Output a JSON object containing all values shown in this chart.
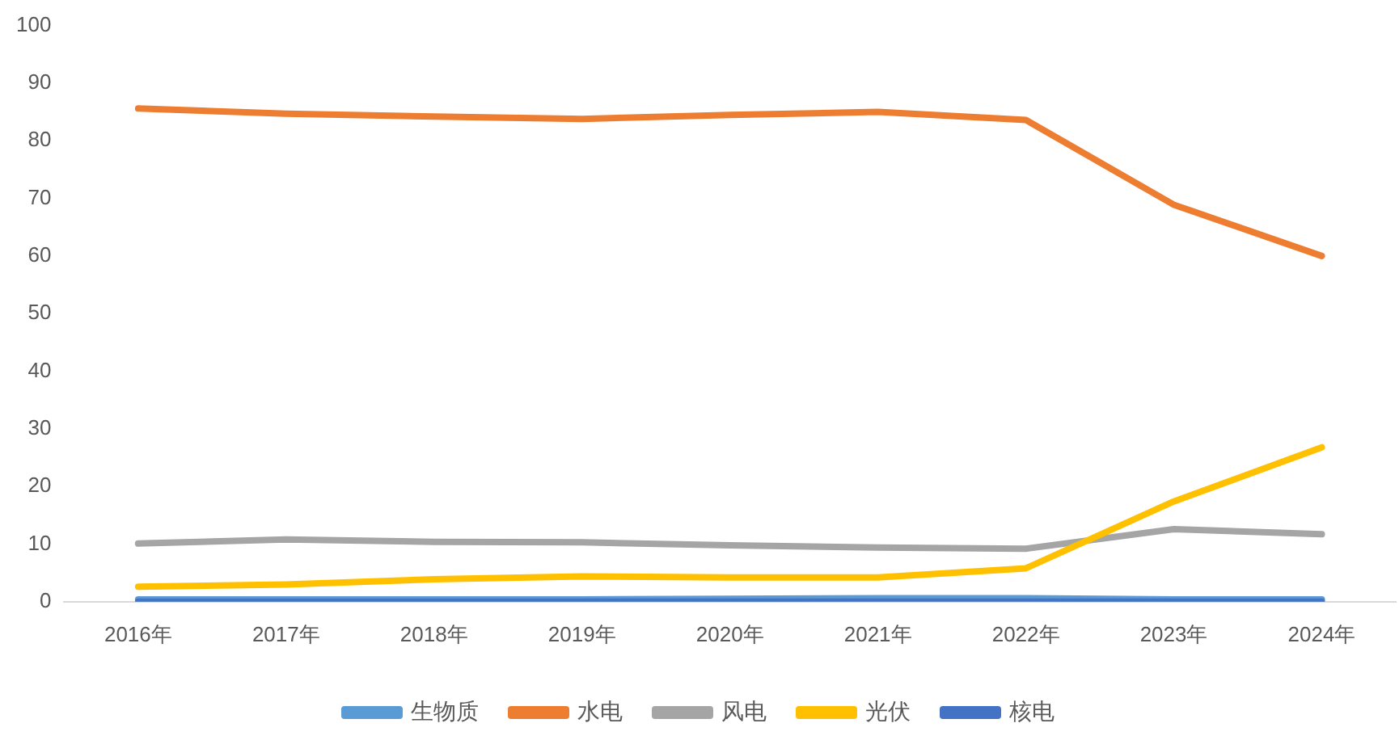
{
  "chart_data": {
    "type": "line",
    "categories": [
      "2016年",
      "2017年",
      "2018年",
      "2019年",
      "2020年",
      "2021年",
      "2022年",
      "2023年",
      "2024年"
    ],
    "series": [
      {
        "name": "生物质",
        "color": "#5b9bd5",
        "values": [
          0.4,
          0.4,
          0.4,
          0.4,
          0.5,
          0.6,
          0.6,
          0.4,
          0.4
        ]
      },
      {
        "name": "水电",
        "color": "#ed7d31",
        "values": [
          85.6,
          84.7,
          84.2,
          83.8,
          84.5,
          85,
          83.6,
          68.9,
          60
        ]
      },
      {
        "name": "风电",
        "color": "#a5a5a5",
        "values": [
          10.1,
          10.8,
          10.4,
          10.3,
          9.8,
          9.4,
          9.2,
          12.6,
          11.7
        ]
      },
      {
        "name": "光伏",
        "color": "#ffc000",
        "values": [
          2.6,
          3,
          3.9,
          4.4,
          4.2,
          4.2,
          5.8,
          17.4,
          26.8
        ]
      },
      {
        "name": "核电",
        "color": "#4472c4",
        "values": [
          0,
          0,
          0,
          0,
          0,
          0,
          0,
          0,
          0
        ]
      }
    ],
    "ylim": [
      0,
      100
    ],
    "yticks": [
      0,
      10,
      20,
      30,
      40,
      50,
      60,
      70,
      80,
      90,
      100
    ],
    "grid": false,
    "legend": "bottom",
    "marker": "none"
  }
}
